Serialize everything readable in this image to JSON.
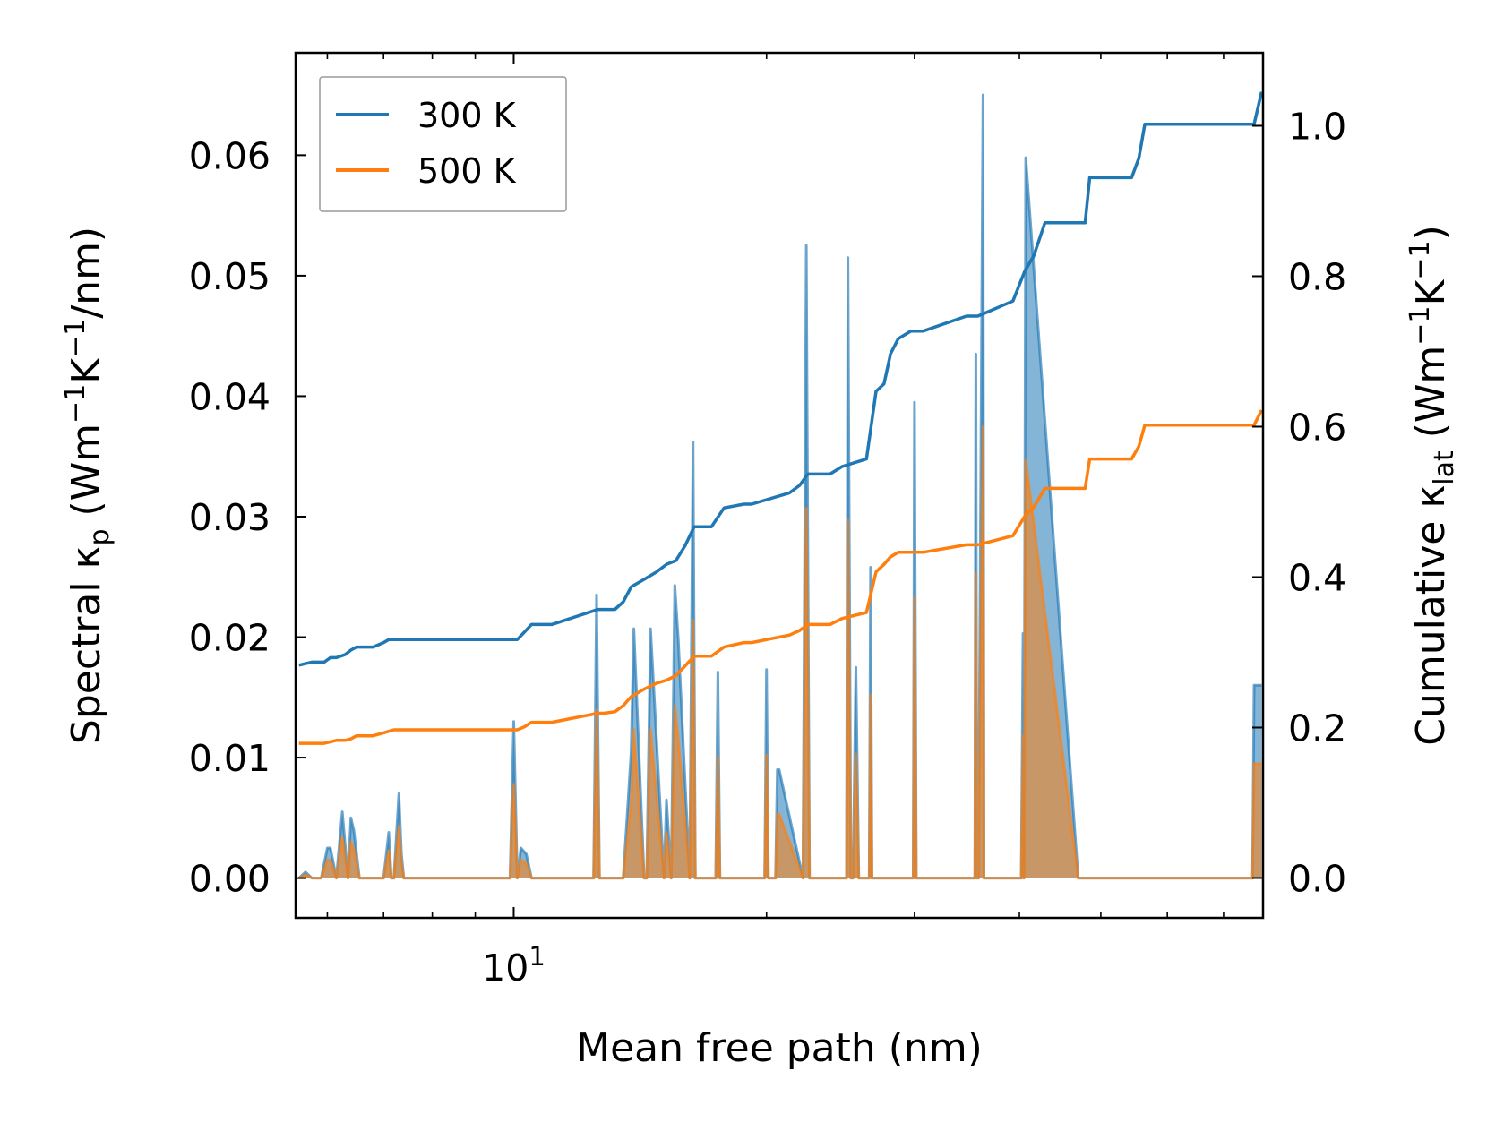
{
  "chart_data": {
    "type": "line",
    "xscale": "log",
    "xlabel": "Mean free path (nm)",
    "xlim": [
      5.5,
      78
    ],
    "x_major_tick_labels": [
      {
        "value": 10,
        "base": "10",
        "exp": "1"
      }
    ],
    "x_minor_ticks": [
      6,
      7,
      8,
      9,
      20,
      30,
      40,
      50,
      60,
      70
    ],
    "left_axis": {
      "label_main": "Spectral κ",
      "label_sub": "p",
      "label_rest": " (Wm",
      "label_sup1": "−1",
      "label_k": "K",
      "label_sup2": "−1",
      "label_end": "/nm)",
      "ylim": [
        -0.0033,
        0.0685
      ],
      "ticks": [
        0.0,
        0.01,
        0.02,
        0.03,
        0.04,
        0.05,
        0.06
      ],
      "tick_labels": [
        "0.00",
        "0.01",
        "0.02",
        "0.03",
        "0.04",
        "0.05",
        "0.06"
      ]
    },
    "right_axis": {
      "label_main": "Cumulative κ",
      "label_sub": "lat",
      "label_rest": " (Wm",
      "label_sup1": "−1",
      "label_k": "K",
      "label_sup2": "−1",
      "label_end": ")",
      "ylim": [
        -0.053,
        1.097
      ],
      "ticks": [
        0.0,
        0.2,
        0.4,
        0.6,
        0.8,
        1.0
      ],
      "tick_labels": [
        "0.0",
        "0.2",
        "0.4",
        "0.6",
        "0.8",
        "1.0"
      ]
    },
    "legend": {
      "position": "top-left",
      "entries": [
        {
          "label": "300 K",
          "color": "#1f77b4"
        },
        {
          "label": "500 K",
          "color": "#ff7f0e"
        }
      ]
    },
    "series": [
      {
        "name": "300 K",
        "color": "#1f77b4",
        "axis": "right",
        "kind": "cumulative",
        "x": [
          5.55,
          5.75,
          5.95,
          6.05,
          6.15,
          6.3,
          6.4,
          6.5,
          6.65,
          6.8,
          7.0,
          7.1,
          7.2,
          7.3,
          10.1,
          10.3,
          10.5,
          10.8,
          11.1,
          12.6,
          12.8,
          13.2,
          13.5,
          13.8,
          14.3,
          14.8,
          15.2,
          15.6,
          16.0,
          16.4,
          17.2,
          17.8,
          18.8,
          19.2,
          21.3,
          21.9,
          22.4,
          23.8,
          24.6,
          26.3,
          27.0,
          27.6,
          28.1,
          28.7,
          29.7,
          30.7,
          34.6,
          35.7,
          39.3,
          40.6,
          41.6,
          42.9,
          47.9,
          48.5,
          54.4,
          55.5,
          56.4,
          76.1,
          77.7
        ],
        "y": [
          0.283,
          0.287,
          0.287,
          0.293,
          0.293,
          0.297,
          0.303,
          0.307,
          0.307,
          0.307,
          0.313,
          0.317,
          0.317,
          0.317,
          0.317,
          0.327,
          0.337,
          0.337,
          0.337,
          0.357,
          0.357,
          0.357,
          0.367,
          0.387,
          0.397,
          0.407,
          0.417,
          0.422,
          0.442,
          0.467,
          0.467,
          0.492,
          0.497,
          0.497,
          0.512,
          0.522,
          0.537,
          0.537,
          0.547,
          0.557,
          0.647,
          0.657,
          0.697,
          0.717,
          0.727,
          0.727,
          0.747,
          0.747,
          0.767,
          0.807,
          0.827,
          0.871,
          0.871,
          0.931,
          0.931,
          0.957,
          1.002,
          1.002,
          1.045
        ]
      },
      {
        "name": "500 K",
        "color": "#ff7f0e",
        "axis": "right",
        "kind": "cumulative",
        "x": [
          5.55,
          5.75,
          5.95,
          6.05,
          6.15,
          6.3,
          6.4,
          6.5,
          6.65,
          6.8,
          7.0,
          7.1,
          7.2,
          7.3,
          10.1,
          10.3,
          10.5,
          10.8,
          11.1,
          12.6,
          12.8,
          13.2,
          13.5,
          13.8,
          14.3,
          14.8,
          15.2,
          15.6,
          16.0,
          16.4,
          17.2,
          17.8,
          18.8,
          19.2,
          21.3,
          21.9,
          22.4,
          23.8,
          24.6,
          26.3,
          27.0,
          27.6,
          28.1,
          28.7,
          29.7,
          30.7,
          34.6,
          35.7,
          39.3,
          40.6,
          41.6,
          42.9,
          47.9,
          48.5,
          54.4,
          55.5,
          56.4,
          76.1,
          77.7
        ],
        "y": [
          0.179,
          0.179,
          0.179,
          0.181,
          0.183,
          0.183,
          0.185,
          0.189,
          0.189,
          0.189,
          0.193,
          0.195,
          0.197,
          0.197,
          0.197,
          0.201,
          0.207,
          0.207,
          0.207,
          0.219,
          0.219,
          0.221,
          0.229,
          0.241,
          0.251,
          0.259,
          0.263,
          0.269,
          0.282,
          0.295,
          0.295,
          0.307,
          0.313,
          0.313,
          0.323,
          0.329,
          0.337,
          0.337,
          0.345,
          0.353,
          0.407,
          0.417,
          0.427,
          0.433,
          0.433,
          0.433,
          0.443,
          0.443,
          0.455,
          0.481,
          0.493,
          0.518,
          0.518,
          0.557,
          0.557,
          0.574,
          0.602,
          0.602,
          0.622
        ]
      },
      {
        "name": "300 K",
        "color": "#1f77b4",
        "axis": "left",
        "kind": "spectral",
        "x": [
          5.55,
          5.65,
          5.75,
          5.9,
          6.0,
          6.05,
          6.15,
          6.25,
          6.35,
          6.4,
          6.45,
          6.55,
          6.7,
          7.0,
          7.1,
          7.15,
          7.2,
          7.3,
          7.35,
          7.4,
          9.9,
          10.0,
          10.1,
          10.2,
          10.35,
          10.5,
          10.65,
          12.45,
          12.55,
          12.65,
          13.5,
          13.7,
          13.8,
          13.9,
          14.3,
          14.4,
          14.55,
          15.1,
          15.2,
          15.4,
          15.55,
          15.7,
          16.2,
          16.35,
          16.45,
          17.4,
          17.5,
          17.6,
          19.9,
          20.0,
          20.1,
          20.5,
          20.6,
          20.7,
          22.1,
          22.3,
          22.5,
          24.9,
          25.0,
          25.2,
          25.35,
          25.55,
          25.75,
          26.5,
          26.6,
          26.7,
          29.9,
          30.0,
          30.15,
          35.4,
          35.5,
          35.6,
          35.75,
          36.2,
          36.3,
          36.4,
          36.6,
          36.8,
          40.2,
          40.4,
          40.5,
          40.7,
          47.0,
          47.1,
          47.2,
          47.4,
          47.55,
          75.8,
          76.1,
          77.7
        ],
        "y": [
          0.0,
          0.0005,
          0.0,
          0.0,
          0.0025,
          0.0025,
          0.0,
          0.0055,
          0.0,
          0.005,
          0.004,
          0.0,
          0.0,
          0.0,
          0.0038,
          0.0,
          0.0,
          0.007,
          0.002,
          0.0,
          0.0,
          0.013,
          0.0,
          0.0025,
          0.002,
          0.0,
          0.0,
          0.0,
          0.0235,
          0.0,
          0.0,
          0.007,
          0.0105,
          0.0207,
          0.0,
          0.0,
          0.0207,
          0.0,
          0.0065,
          0.0,
          0.0243,
          0.0198,
          0.0,
          0.0362,
          0.0,
          0.0,
          0.0171,
          0.0,
          0.0,
          0.0173,
          0.0,
          0.0,
          0.009,
          0.009,
          0.0,
          0.0525,
          0.0,
          0.0,
          0.0515,
          0.0,
          0.0,
          0.0175,
          0.0,
          0.0,
          0.0258,
          0.0,
          0.0,
          0.0395,
          0.0,
          0.0,
          0.0435,
          0.0,
          0.0,
          0.065,
          0.0,
          0.0,
          0.0,
          0.0,
          0.0,
          0.0203,
          0.0,
          0.0598,
          0.0,
          0.0,
          0.0,
          0.0,
          0.0,
          0.0,
          0.016,
          0.016
        ]
      },
      {
        "name": "500 K",
        "color": "#ff7f0e",
        "axis": "left",
        "kind": "spectral",
        "x": [
          5.55,
          5.65,
          5.75,
          5.9,
          6.0,
          6.05,
          6.15,
          6.25,
          6.35,
          6.4,
          6.45,
          6.55,
          6.7,
          7.0,
          7.1,
          7.15,
          7.2,
          7.3,
          7.35,
          7.4,
          9.9,
          10.0,
          10.1,
          10.2,
          10.35,
          10.5,
          10.65,
          12.45,
          12.55,
          12.65,
          13.5,
          13.7,
          13.8,
          13.9,
          14.3,
          14.4,
          14.55,
          15.1,
          15.2,
          15.4,
          15.55,
          15.7,
          16.2,
          16.35,
          16.45,
          17.4,
          17.5,
          17.6,
          19.9,
          20.0,
          20.1,
          20.5,
          20.6,
          20.7,
          22.1,
          22.3,
          22.5,
          24.9,
          25.0,
          25.2,
          25.35,
          25.55,
          25.75,
          26.5,
          26.6,
          26.7,
          29.9,
          30.0,
          30.15,
          35.4,
          35.5,
          35.6,
          35.75,
          36.2,
          36.3,
          36.4,
          36.6,
          36.8,
          40.2,
          40.4,
          40.5,
          40.7,
          47.0,
          47.1,
          47.2,
          47.4,
          47.55,
          75.8,
          76.1,
          77.7
        ],
        "y": [
          0.0,
          0.0003,
          0.0,
          0.0,
          0.0015,
          0.0015,
          0.0,
          0.0034,
          0.0,
          0.003,
          0.0024,
          0.0,
          0.0,
          0.0,
          0.0023,
          0.0,
          0.0,
          0.0043,
          0.0012,
          0.0,
          0.0,
          0.0078,
          0.0,
          0.0015,
          0.0012,
          0.0,
          0.0,
          0.0,
          0.014,
          0.0,
          0.0,
          0.0042,
          0.0063,
          0.0123,
          0.0,
          0.0,
          0.0123,
          0.0,
          0.0038,
          0.0,
          0.0143,
          0.0115,
          0.0,
          0.0214,
          0.0,
          0.0,
          0.0101,
          0.0,
          0.0,
          0.0102,
          0.0,
          0.0,
          0.0053,
          0.0053,
          0.0,
          0.0307,
          0.0,
          0.0,
          0.0297,
          0.0,
          0.0,
          0.0103,
          0.0,
          0.0,
          0.0152,
          0.0,
          0.0,
          0.0233,
          0.0,
          0.0,
          0.0253,
          0.0,
          0.0,
          0.0375,
          0.0,
          0.0,
          0.0,
          0.0,
          0.0,
          0.0118,
          0.0,
          0.0347,
          0.0,
          0.0,
          0.0,
          0.0,
          0.0,
          0.0,
          0.0095,
          0.0095
        ]
      }
    ]
  }
}
